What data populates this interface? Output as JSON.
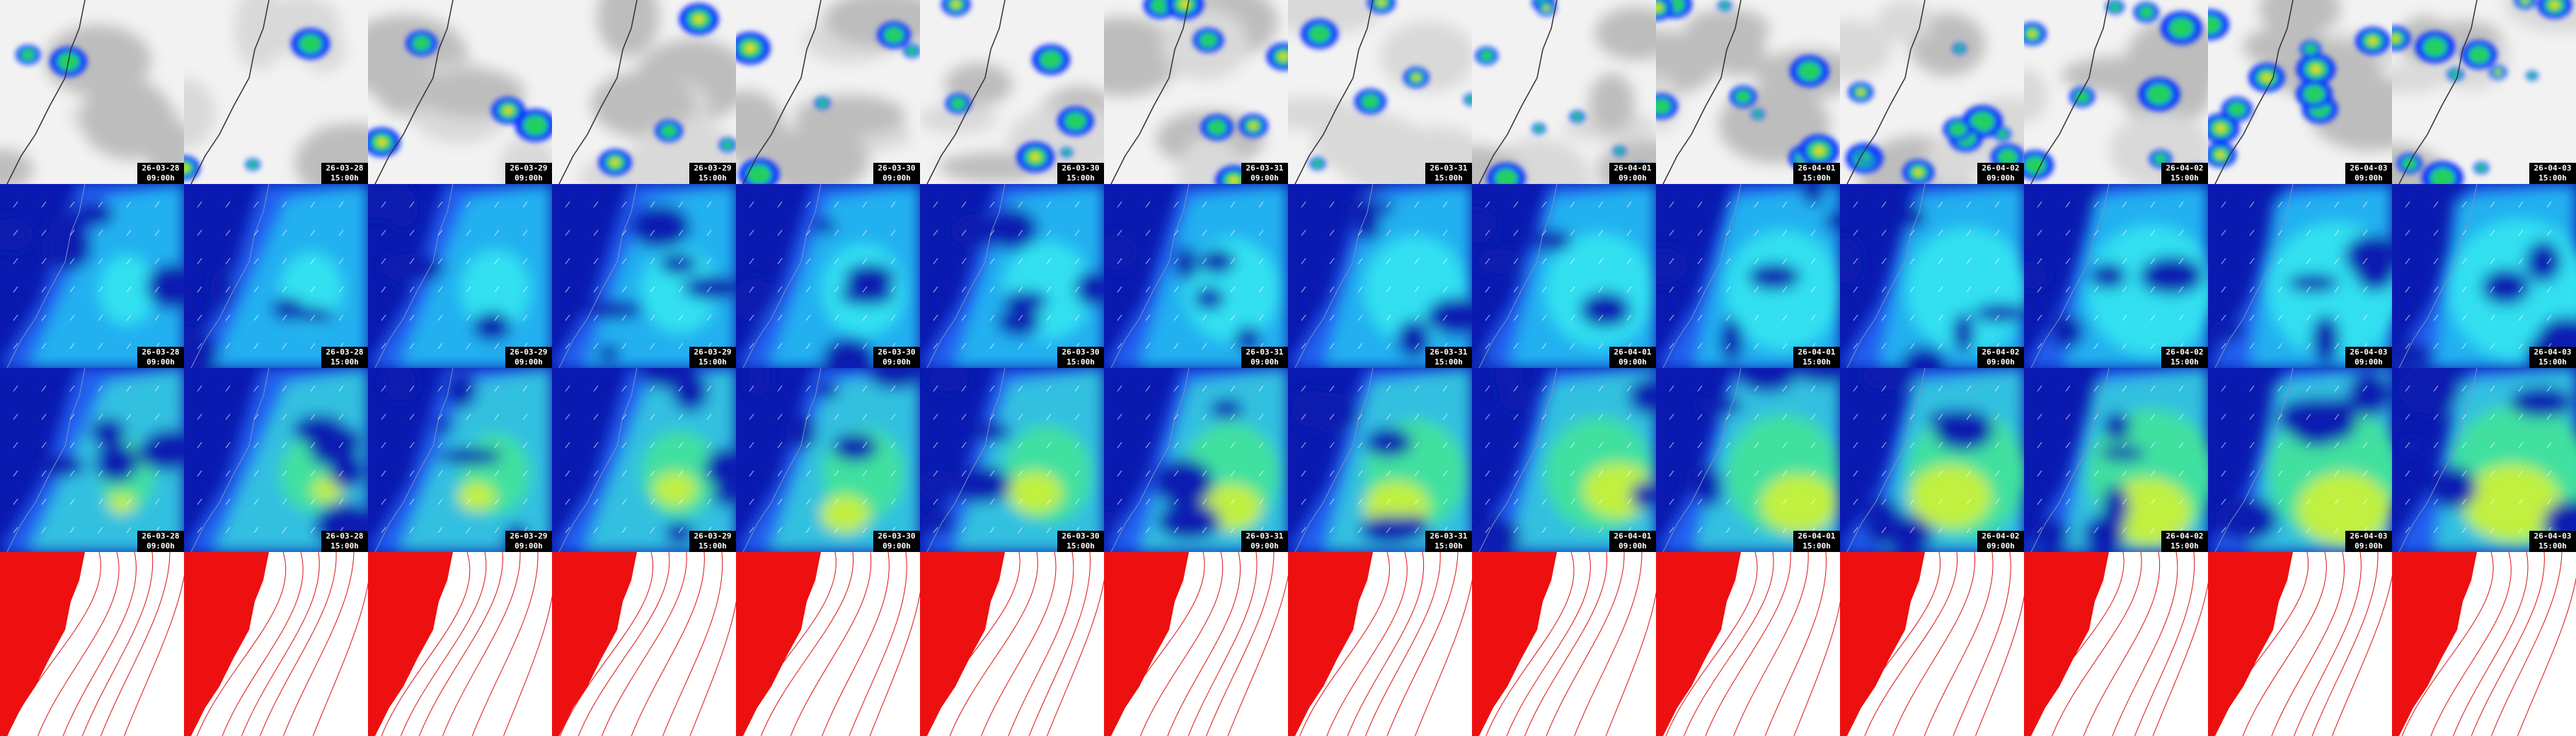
{
  "columns": [
    {
      "date": "26-03-28",
      "time": "09:00h"
    },
    {
      "date": "26-03-28",
      "time": "15:00h"
    },
    {
      "date": "26-03-29",
      "time": "09:00h"
    },
    {
      "date": "26-03-29",
      "time": "15:00h"
    },
    {
      "date": "26-03-30",
      "time": "09:00h"
    },
    {
      "date": "26-03-30",
      "time": "15:00h"
    },
    {
      "date": "26-03-31",
      "time": "09:00h"
    },
    {
      "date": "26-03-31",
      "time": "15:00h"
    },
    {
      "date": "26-04-01",
      "time": "09:00h"
    },
    {
      "date": "26-04-01",
      "time": "15:00h"
    },
    {
      "date": "26-04-02",
      "time": "09:00h"
    },
    {
      "date": "26-04-02",
      "time": "15:00h"
    },
    {
      "date": "26-04-03",
      "time": "09:00h"
    },
    {
      "date": "26-04-03",
      "time": "15:00h"
    }
  ]
}
